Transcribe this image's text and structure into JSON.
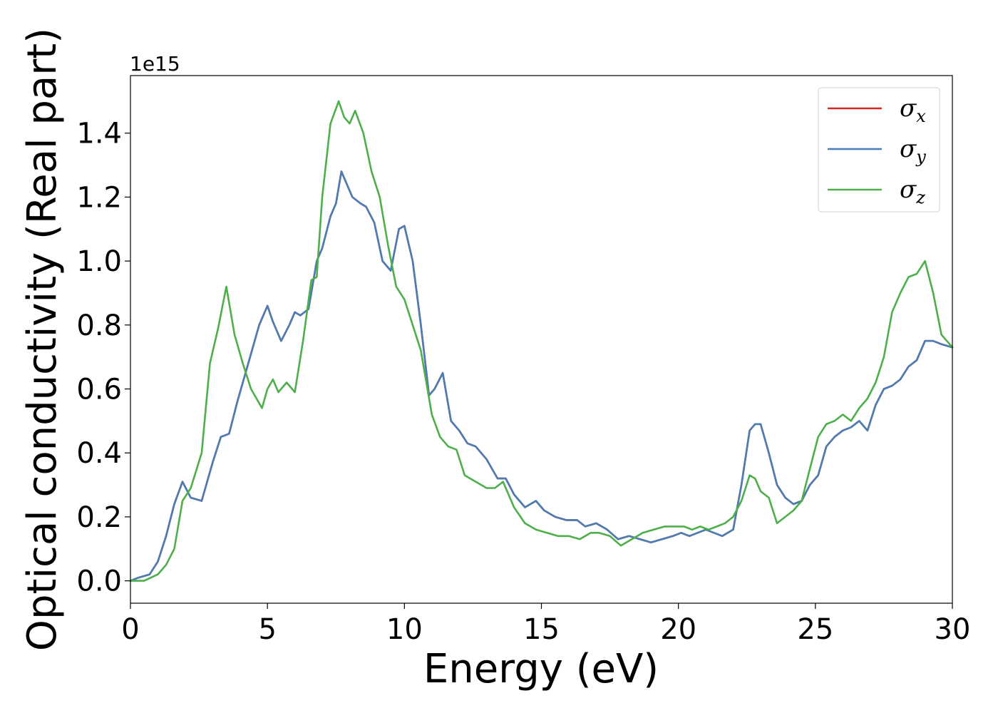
{
  "chart_data": {
    "type": "line",
    "title": "",
    "xlabel": "Energy (eV)",
    "ylabel": "Optical conductivity (Real part)",
    "y_offset_text": "1e15",
    "xlim": [
      0,
      30
    ],
    "ylim": [
      -0.07,
      1.58
    ],
    "x_ticks": [
      0,
      5,
      10,
      15,
      20,
      25,
      30
    ],
    "x_tick_labels": [
      "0",
      "5",
      "10",
      "15",
      "20",
      "25",
      "30"
    ],
    "y_ticks": [
      0.0,
      0.2,
      0.4,
      0.6,
      0.8,
      1.0,
      1.2,
      1.4
    ],
    "y_tick_labels": [
      "0.0",
      "0.2",
      "0.4",
      "0.6",
      "0.8",
      "1.0",
      "1.2",
      "1.4"
    ],
    "grid": false,
    "legend_position": "top-right",
    "series": [
      {
        "name": "σx",
        "symbol": "σ",
        "subscript": "x",
        "color": "#d62728",
        "x": [
          0,
          0.3,
          0.7,
          1.0,
          1.3,
          1.6,
          1.9,
          2.2,
          2.6,
          3.0,
          3.3,
          3.6,
          3.9,
          4.3,
          4.7,
          5.0,
          5.2,
          5.5,
          5.8,
          6.0,
          6.2,
          6.5,
          6.8,
          7.0,
          7.3,
          7.5,
          7.7,
          7.9,
          8.1,
          8.4,
          8.6,
          8.9,
          9.2,
          9.5,
          9.8,
          10.0,
          10.3,
          10.6,
          10.9,
          11.1,
          11.4,
          11.7,
          12.0,
          12.3,
          12.6,
          13.0,
          13.4,
          13.7,
          14.0,
          14.4,
          14.8,
          15.1,
          15.5,
          15.9,
          16.3,
          16.6,
          17.0,
          17.4,
          17.8,
          18.2,
          18.6,
          19.0,
          19.4,
          19.8,
          20.1,
          20.4,
          20.7,
          21.0,
          21.3,
          21.6,
          22.0,
          22.3,
          22.6,
          22.8,
          23.0,
          23.3,
          23.6,
          23.9,
          24.2,
          24.5,
          24.8,
          25.1,
          25.4,
          25.7,
          26.0,
          26.3,
          26.6,
          26.9,
          27.2,
          27.5,
          27.8,
          28.1,
          28.4,
          28.7,
          29.0,
          29.3,
          29.6,
          30.0
        ],
        "values": [
          0.0,
          0.01,
          0.02,
          0.06,
          0.14,
          0.24,
          0.31,
          0.26,
          0.25,
          0.37,
          0.45,
          0.46,
          0.56,
          0.68,
          0.8,
          0.86,
          0.81,
          0.75,
          0.8,
          0.84,
          0.83,
          0.85,
          1.0,
          1.04,
          1.14,
          1.18,
          1.28,
          1.24,
          1.2,
          1.18,
          1.17,
          1.12,
          1.0,
          0.97,
          1.1,
          1.11,
          1.0,
          0.8,
          0.58,
          0.6,
          0.65,
          0.5,
          0.47,
          0.43,
          0.42,
          0.38,
          0.32,
          0.32,
          0.27,
          0.23,
          0.25,
          0.22,
          0.2,
          0.19,
          0.19,
          0.17,
          0.18,
          0.16,
          0.13,
          0.14,
          0.13,
          0.12,
          0.13,
          0.14,
          0.15,
          0.14,
          0.15,
          0.16,
          0.15,
          0.14,
          0.16,
          0.3,
          0.47,
          0.49,
          0.49,
          0.4,
          0.3,
          0.26,
          0.24,
          0.25,
          0.3,
          0.33,
          0.42,
          0.45,
          0.47,
          0.48,
          0.5,
          0.47,
          0.55,
          0.6,
          0.61,
          0.63,
          0.67,
          0.69,
          0.75,
          0.75,
          0.74,
          0.73
        ]
      },
      {
        "name": "σy",
        "symbol": "σ",
        "subscript": "y",
        "color": "#4a7db5",
        "x": [
          0,
          0.3,
          0.7,
          1.0,
          1.3,
          1.6,
          1.9,
          2.2,
          2.6,
          3.0,
          3.3,
          3.6,
          3.9,
          4.3,
          4.7,
          5.0,
          5.2,
          5.5,
          5.8,
          6.0,
          6.2,
          6.5,
          6.8,
          7.0,
          7.3,
          7.5,
          7.7,
          7.9,
          8.1,
          8.4,
          8.6,
          8.9,
          9.2,
          9.5,
          9.8,
          10.0,
          10.3,
          10.6,
          10.9,
          11.1,
          11.4,
          11.7,
          12.0,
          12.3,
          12.6,
          13.0,
          13.4,
          13.7,
          14.0,
          14.4,
          14.8,
          15.1,
          15.5,
          15.9,
          16.3,
          16.6,
          17.0,
          17.4,
          17.8,
          18.2,
          18.6,
          19.0,
          19.4,
          19.8,
          20.1,
          20.4,
          20.7,
          21.0,
          21.3,
          21.6,
          22.0,
          22.3,
          22.6,
          22.8,
          23.0,
          23.3,
          23.6,
          23.9,
          24.2,
          24.5,
          24.8,
          25.1,
          25.4,
          25.7,
          26.0,
          26.3,
          26.6,
          26.9,
          27.2,
          27.5,
          27.8,
          28.1,
          28.4,
          28.7,
          29.0,
          29.3,
          29.6,
          30.0
        ],
        "values": [
          0.0,
          0.01,
          0.02,
          0.06,
          0.14,
          0.24,
          0.31,
          0.26,
          0.25,
          0.37,
          0.45,
          0.46,
          0.56,
          0.68,
          0.8,
          0.86,
          0.81,
          0.75,
          0.8,
          0.84,
          0.83,
          0.85,
          1.0,
          1.04,
          1.14,
          1.18,
          1.28,
          1.24,
          1.2,
          1.18,
          1.17,
          1.12,
          1.0,
          0.97,
          1.1,
          1.11,
          1.0,
          0.8,
          0.58,
          0.6,
          0.65,
          0.5,
          0.47,
          0.43,
          0.42,
          0.38,
          0.32,
          0.32,
          0.27,
          0.23,
          0.25,
          0.22,
          0.2,
          0.19,
          0.19,
          0.17,
          0.18,
          0.16,
          0.13,
          0.14,
          0.13,
          0.12,
          0.13,
          0.14,
          0.15,
          0.14,
          0.15,
          0.16,
          0.15,
          0.14,
          0.16,
          0.3,
          0.47,
          0.49,
          0.49,
          0.4,
          0.3,
          0.26,
          0.24,
          0.25,
          0.3,
          0.33,
          0.42,
          0.45,
          0.47,
          0.48,
          0.5,
          0.47,
          0.55,
          0.6,
          0.61,
          0.63,
          0.67,
          0.69,
          0.75,
          0.75,
          0.74,
          0.73
        ]
      },
      {
        "name": "σz",
        "symbol": "σ",
        "subscript": "z",
        "color": "#4daf4a",
        "x": [
          0,
          0.5,
          1.0,
          1.3,
          1.6,
          1.9,
          2.2,
          2.6,
          2.9,
          3.2,
          3.5,
          3.8,
          4.1,
          4.4,
          4.8,
          5.0,
          5.2,
          5.4,
          5.7,
          6.0,
          6.3,
          6.6,
          6.8,
          7.0,
          7.3,
          7.6,
          7.8,
          8.0,
          8.2,
          8.5,
          8.8,
          9.1,
          9.4,
          9.7,
          10.0,
          10.3,
          10.6,
          11.0,
          11.3,
          11.6,
          11.9,
          12.2,
          12.6,
          13.0,
          13.3,
          13.6,
          14.0,
          14.4,
          14.8,
          15.2,
          15.6,
          16.0,
          16.4,
          16.8,
          17.1,
          17.5,
          17.9,
          18.3,
          18.7,
          19.1,
          19.5,
          19.9,
          20.2,
          20.5,
          20.8,
          21.1,
          21.4,
          21.7,
          22.0,
          22.3,
          22.6,
          22.8,
          23.0,
          23.3,
          23.6,
          23.9,
          24.2,
          24.5,
          24.8,
          25.1,
          25.4,
          25.7,
          26.0,
          26.3,
          26.6,
          26.9,
          27.2,
          27.5,
          27.8,
          28.1,
          28.4,
          28.7,
          29.0,
          29.3,
          29.6,
          30.0
        ],
        "values": [
          0.0,
          0.0,
          0.02,
          0.05,
          0.1,
          0.25,
          0.29,
          0.4,
          0.68,
          0.79,
          0.92,
          0.77,
          0.68,
          0.6,
          0.54,
          0.6,
          0.63,
          0.59,
          0.62,
          0.59,
          0.75,
          0.94,
          0.95,
          1.2,
          1.43,
          1.5,
          1.45,
          1.43,
          1.47,
          1.4,
          1.28,
          1.2,
          1.05,
          0.92,
          0.88,
          0.8,
          0.72,
          0.52,
          0.45,
          0.42,
          0.41,
          0.33,
          0.31,
          0.29,
          0.29,
          0.31,
          0.23,
          0.18,
          0.16,
          0.15,
          0.14,
          0.14,
          0.13,
          0.15,
          0.15,
          0.14,
          0.11,
          0.13,
          0.15,
          0.16,
          0.17,
          0.17,
          0.17,
          0.16,
          0.17,
          0.16,
          0.17,
          0.18,
          0.2,
          0.25,
          0.33,
          0.32,
          0.28,
          0.26,
          0.18,
          0.2,
          0.22,
          0.25,
          0.35,
          0.45,
          0.49,
          0.5,
          0.52,
          0.5,
          0.54,
          0.57,
          0.62,
          0.7,
          0.84,
          0.9,
          0.95,
          0.96,
          1.0,
          0.9,
          0.77,
          0.73
        ]
      }
    ]
  }
}
